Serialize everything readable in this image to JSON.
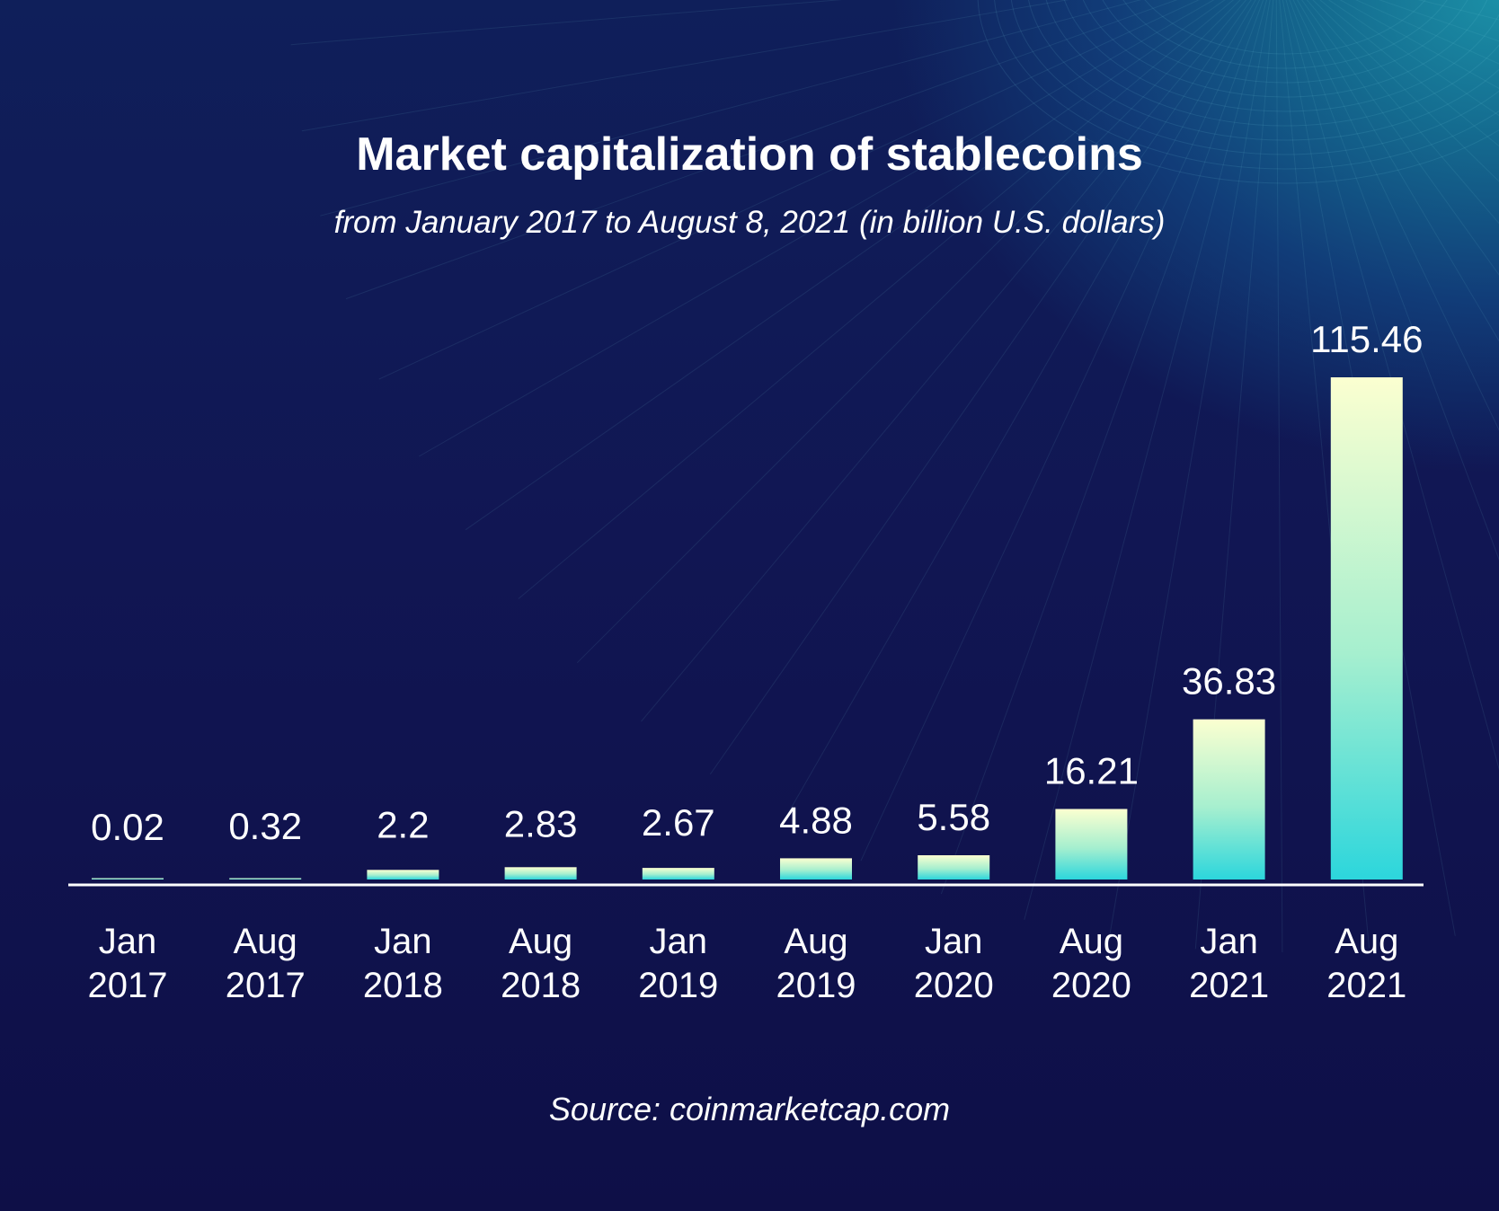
{
  "header": {
    "title": "Market capitalization of stablecoins",
    "subtitle": "from January 2017 to August 8, 2021 (in billion U.S. dollars)"
  },
  "footer": {
    "source": "Source: coinmarketcap.com"
  },
  "colors": {
    "background_dark": "#0f1247",
    "background_accent": "#1b8fa6",
    "bar_top": "#fbffd0",
    "bar_bottom": "#2cd6dc",
    "axis_line": "#ffffff",
    "text": "#ffffff"
  },
  "chart_data": {
    "type": "bar",
    "title": "Market capitalization of stablecoins",
    "subtitle": "from January 2017 to August 8, 2021 (in billion U.S. dollars)",
    "categories": [
      [
        "Jan",
        "2017"
      ],
      [
        "Aug",
        "2017"
      ],
      [
        "Jan",
        "2018"
      ],
      [
        "Aug",
        "2018"
      ],
      [
        "Jan",
        "2019"
      ],
      [
        "Aug",
        "2019"
      ],
      [
        "Jan",
        "2020"
      ],
      [
        "Aug",
        "2020"
      ],
      [
        "Jan",
        "2021"
      ],
      [
        "Aug",
        "2021"
      ]
    ],
    "values": [
      0.02,
      0.32,
      2.2,
      2.83,
      2.67,
      4.88,
      5.58,
      16.21,
      36.83,
      115.46
    ],
    "value_labels": [
      "0.02",
      "0.32",
      "2.2",
      "2.83",
      "2.67",
      "4.88",
      "5.58",
      "16.21",
      "36.83",
      "115.46"
    ],
    "ylim": [
      0,
      115.46
    ],
    "grid": false,
    "legend": "none",
    "data_labels": true,
    "source": "Source: coinmarketcap.com"
  }
}
